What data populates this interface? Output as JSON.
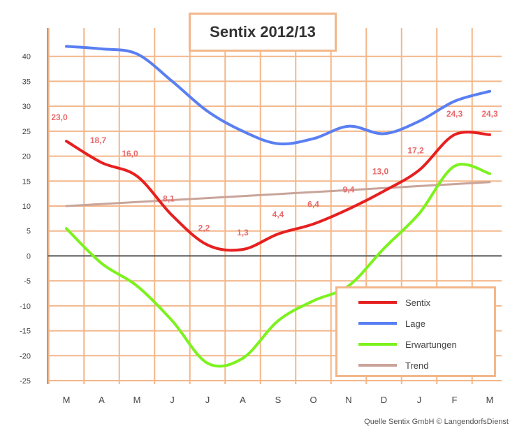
{
  "chart_data": {
    "type": "line",
    "title": "Sentix 2012/13",
    "categories": [
      "M",
      "A",
      "M",
      "J",
      "J",
      "A",
      "S",
      "O",
      "N",
      "D",
      "J",
      "F",
      "M"
    ],
    "ylim": [
      -25,
      45
    ],
    "yticks": [
      -25,
      -20,
      -15,
      -10,
      -5,
      0,
      5,
      10,
      15,
      20,
      25,
      30,
      35,
      40
    ],
    "grid": true,
    "legend_position": "bottom-right",
    "series": [
      {
        "name": "Sentix",
        "color": "#e62020",
        "values": [
          23.0,
          18.7,
          16.0,
          8.1,
          2.2,
          1.3,
          4.4,
          6.4,
          9.4,
          13.0,
          17.2,
          24.3,
          24.3
        ],
        "labels": [
          "23,0",
          "18,7",
          "16,0",
          "8,1",
          "2,2",
          "1,3",
          "4,4",
          "6,4",
          "9,4",
          "13,0",
          "17,2",
          "24,3",
          "24,3"
        ]
      },
      {
        "name": "Lage",
        "color": "#5a7ff2",
        "values": [
          42,
          41.5,
          40.5,
          35,
          29,
          25,
          22.5,
          23.5,
          26,
          24.5,
          27,
          31,
          33
        ]
      },
      {
        "name": "Erwartungen",
        "color": "#7cf21e",
        "values": [
          5.5,
          -1.5,
          -6,
          -13,
          -21.5,
          -20.5,
          -13,
          -9,
          -6,
          1.5,
          8.5,
          18,
          16.5
        ]
      },
      {
        "name": "Trend",
        "color": "#c9a49a",
        "values": [
          10,
          10.4,
          10.8,
          11.2,
          11.6,
          12,
          12.4,
          12.8,
          13.2,
          13.6,
          14.0,
          14.4,
          14.8
        ]
      }
    ]
  },
  "source": "Quelle Sentix GmbH © LangendorfsDienst"
}
